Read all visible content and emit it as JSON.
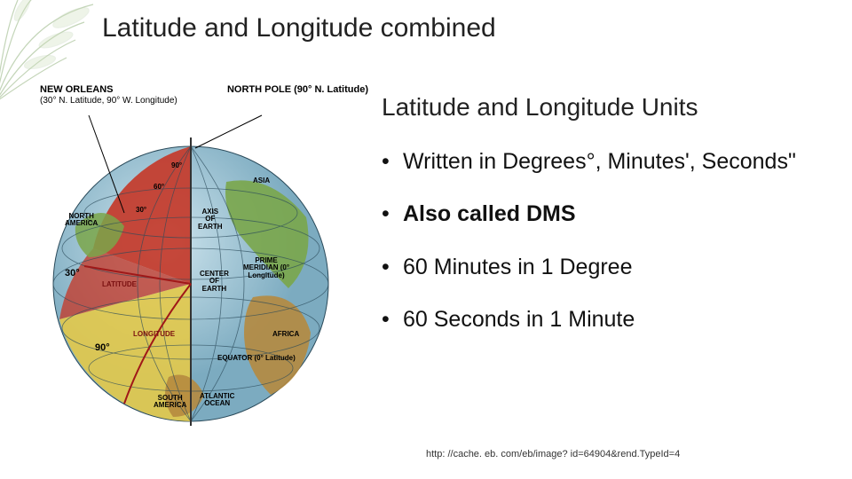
{
  "deco": {
    "leaf_color": "#5a8a3a",
    "leaf_opacity": 0.35
  },
  "title": "Latitude and Longitude combined",
  "globe": {
    "top_left_label": "NEW ORLEANS",
    "top_left_sub": "(30° N. Latitude, 90° W. Longitude)",
    "top_right_label": "NORTH POLE (90° N. Latitude)",
    "ocean_color": "#9dc6d8",
    "land_color": "#b58a3f",
    "north_america_color": "#7aa64a",
    "wedge_red": "#c43a2a",
    "wedge_yellow": "#e3c94a",
    "axis_color": "#333333",
    "labels": {
      "asia": "ASIA",
      "axis": "AXIS\nOF\nEARTH",
      "north_america": "NORTH\nAMERICA",
      "center": "CENTER\nOF\nEARTH",
      "prime": "PRIME\nMERIDIAN (0°\nLongitude)",
      "africa": "AFRICA",
      "latitude": "LATITUDE",
      "longitude": "LONGITUDE",
      "equator": "EQUATOR (0° Latitude)",
      "south_america": "SOUTH\nAMERICA",
      "atlantic": "ATLANTIC\nOCEAN",
      "thirty": "30°",
      "ninety": "90°",
      "small90": "90°",
      "small60": "60°",
      "small30": "30°"
    }
  },
  "subheading": "Latitude and Longitude Units",
  "bullets": [
    {
      "text": "Written in Degrees°, Minutes', Seconds\"",
      "bold": false
    },
    {
      "text": "Also called DMS",
      "bold": true
    },
    {
      "text": "60 Minutes in 1 Degree",
      "bold": false
    },
    {
      "text": "60 Seconds in 1 Minute",
      "bold": false
    }
  ],
  "citation": "http: //cache. eb. com/eb/image? id=64904&rend.TypeId=4"
}
